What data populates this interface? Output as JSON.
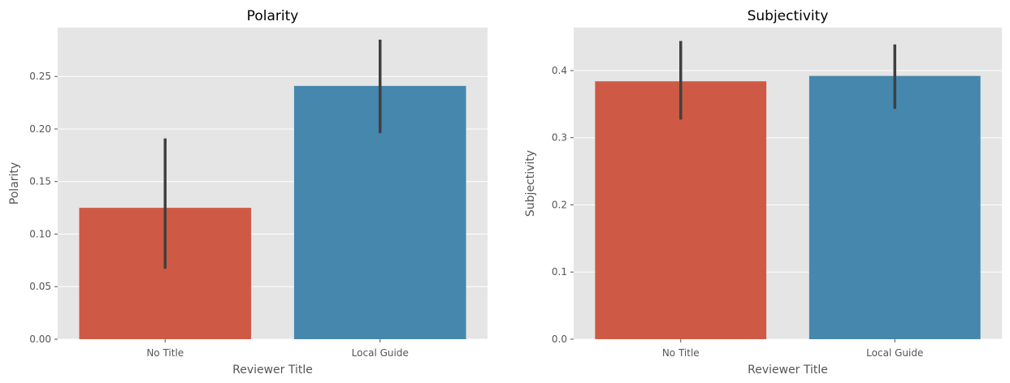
{
  "chart_data": [
    {
      "type": "bar",
      "title": "Polarity",
      "xlabel": "Reviewer Title",
      "ylabel": "Polarity",
      "categories": [
        "No Title",
        "Local Guide"
      ],
      "values": [
        0.125,
        0.241
      ],
      "error_low": [
        0.067,
        0.196
      ],
      "error_high": [
        0.191,
        0.285
      ],
      "colors": [
        "#ce5a45",
        "#4587ad"
      ],
      "ylim": [
        0,
        0.2965
      ],
      "yticks": [
        0.0,
        0.05,
        0.1,
        0.15,
        0.2,
        0.25
      ],
      "ytick_labels": [
        "0.00",
        "0.05",
        "0.10",
        "0.15",
        "0.20",
        "0.25"
      ],
      "grid": true
    },
    {
      "type": "bar",
      "title": "Subjectivity",
      "xlabel": "Reviewer Title",
      "ylabel": "Subjectivity",
      "categories": [
        "No Title",
        "Local Guide"
      ],
      "values": [
        0.384,
        0.392
      ],
      "error_low": [
        0.327,
        0.343
      ],
      "error_high": [
        0.444,
        0.439
      ],
      "colors": [
        "#ce5a45",
        "#4587ad"
      ],
      "ylim": [
        0,
        0.464
      ],
      "yticks": [
        0.0,
        0.1,
        0.2,
        0.3,
        0.4
      ],
      "ytick_labels": [
        "0.0",
        "0.1",
        "0.2",
        "0.3",
        "0.4"
      ],
      "grid": true
    }
  ],
  "style": {
    "plot_bg": "#e5e5e5",
    "grid": "#ffffff",
    "errorbar": "#404040"
  }
}
